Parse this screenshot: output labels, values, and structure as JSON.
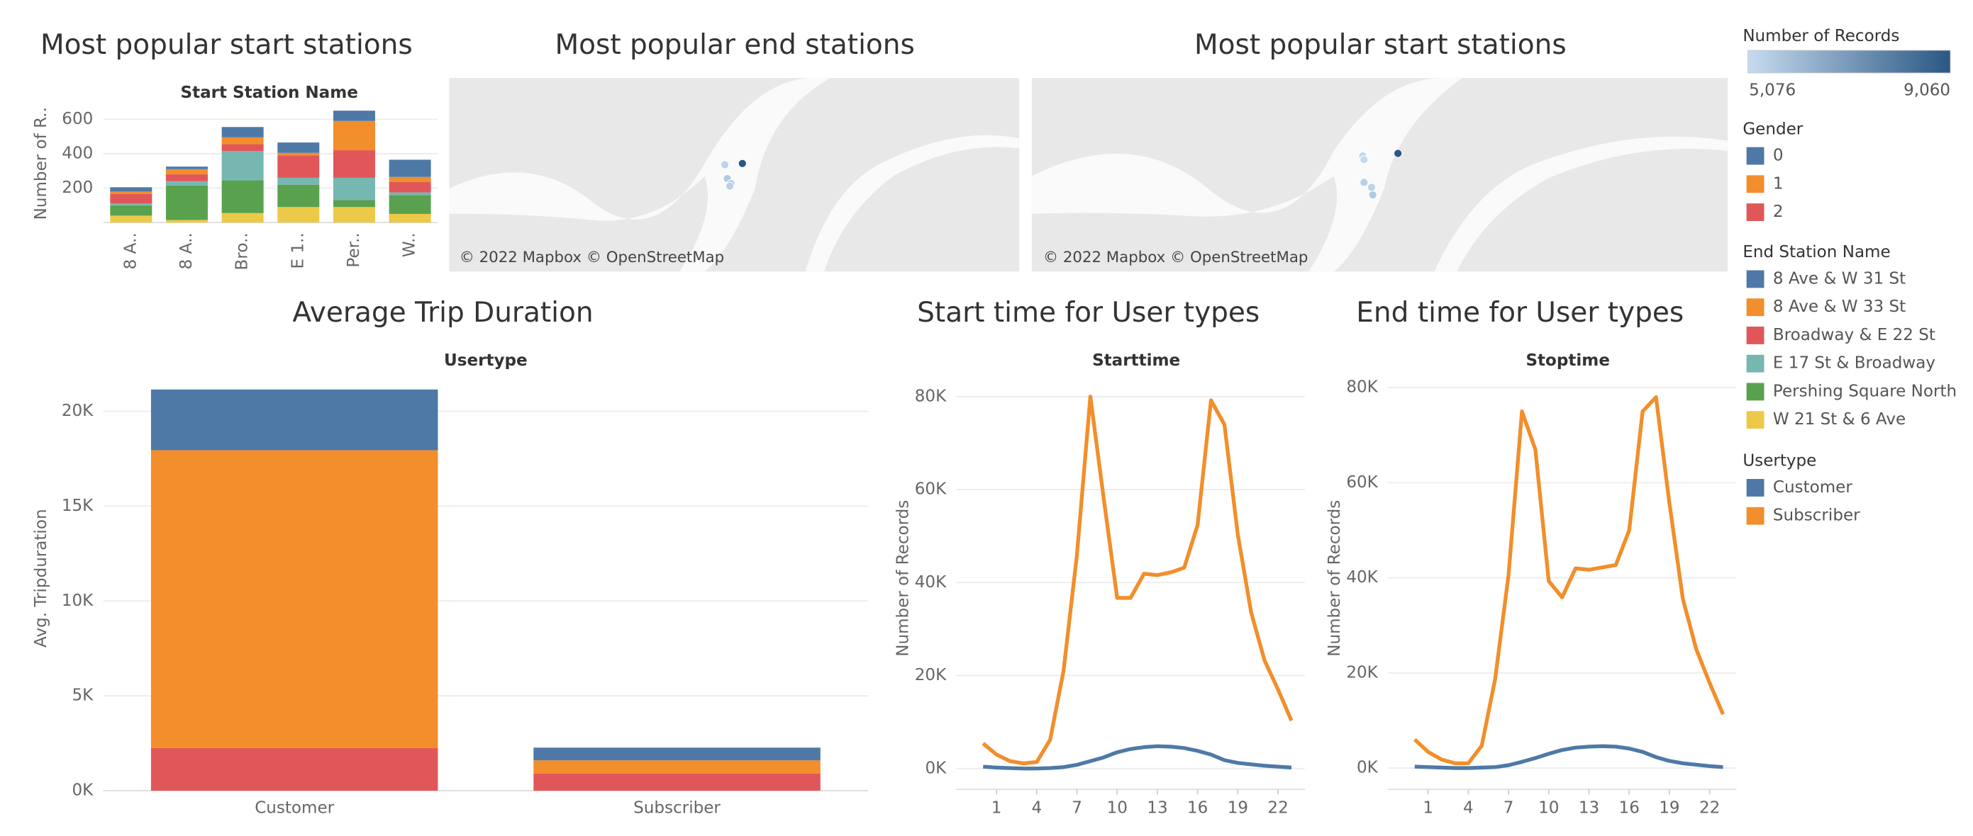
{
  "chart_data": [
    {
      "type": "bar",
      "title": "Most popular start stations",
      "subtitle": "Start Station Name",
      "y_label": "Number of R..",
      "legend_title": "End Station Name",
      "categories": [
        "8 A..",
        "8 A..",
        "Bro..",
        "E 1..",
        "Per..",
        "W.."
      ],
      "ylim": [
        0,
        650
      ],
      "yticks": [
        200,
        400,
        600
      ],
      "grid": true,
      "series": [
        {
          "name": "8 Ave & W 31 St",
          "color": "#4e79a7",
          "values": [
            25,
            15,
            60,
            60,
            60,
            100
          ]
        },
        {
          "name": "8 Ave & W 33 St",
          "color": "#f28e2b",
          "values": [
            15,
            30,
            40,
            15,
            170,
            30
          ]
        },
        {
          "name": "Broadway & E 22 St",
          "color": "#e15759",
          "values": [
            55,
            40,
            40,
            130,
            160,
            60
          ]
        },
        {
          "name": "E 17 St & Broadway",
          "color": "#76b7b2",
          "values": [
            10,
            25,
            170,
            40,
            130,
            15
          ]
        },
        {
          "name": "Pershing Square North",
          "color": "#59a14f",
          "values": [
            60,
            200,
            190,
            130,
            40,
            110
          ]
        },
        {
          "name": "W 21 St & 6 Ave",
          "color": "#edc948",
          "values": [
            40,
            15,
            55,
            90,
            90,
            50
          ]
        }
      ]
    },
    {
      "type": "bar",
      "title": "Average Trip Duration",
      "subtitle": "Usertype",
      "y_label": "Avg. Tripduration",
      "legend_title": "Gender",
      "categories": [
        "Customer",
        "Subscriber"
      ],
      "ylim": [
        0,
        22000
      ],
      "grid": true,
      "yticks": [
        {
          "value": 0,
          "label": "0K"
        },
        {
          "value": 5000,
          "label": "5K"
        },
        {
          "value": 10000,
          "label": "10K"
        },
        {
          "value": 15000,
          "label": "15K"
        },
        {
          "value": 20000,
          "label": "20K"
        }
      ],
      "series": [
        {
          "name": "0",
          "color": "#4e79a7",
          "values": [
            3200,
            670
          ]
        },
        {
          "name": "1",
          "color": "#f28e2b",
          "values": [
            15700,
            700
          ]
        },
        {
          "name": "2",
          "color": "#e15759",
          "values": [
            2250,
            900
          ]
        }
      ]
    },
    {
      "type": "line",
      "title": "Start time for User types",
      "subtitle": "Starttime",
      "y_label": "Number of Records",
      "legend_title": "Usertype",
      "x": [
        0,
        1,
        2,
        3,
        4,
        5,
        6,
        7,
        8,
        9,
        10,
        11,
        12,
        13,
        14,
        15,
        16,
        17,
        18,
        19,
        20,
        21,
        22,
        23
      ],
      "xlim": [
        -2,
        24
      ],
      "xticks": [
        1,
        4,
        7,
        10,
        13,
        16,
        19,
        22
      ],
      "ylim": [
        -4500,
        85000
      ],
      "grid": true,
      "yticks": [
        {
          "value": 0,
          "label": "0K"
        },
        {
          "value": 20000,
          "label": "20K"
        },
        {
          "value": 40000,
          "label": "40K"
        },
        {
          "value": 60000,
          "label": "60K"
        },
        {
          "value": 80000,
          "label": "80K"
        }
      ],
      "series": [
        {
          "name": "Customer",
          "color": "#4e79a7",
          "values": [
            400,
            200,
            100,
            0,
            0,
            100,
            300,
            800,
            1600,
            2400,
            3500,
            4200,
            4600,
            4800,
            4700,
            4400,
            3800,
            3000,
            1800,
            1200,
            900,
            600,
            400,
            200
          ]
        },
        {
          "name": "Subscriber",
          "color": "#f28e2b",
          "values": [
            5400,
            3000,
            1600,
            1100,
            1400,
            6200,
            21000,
            46000,
            80000,
            58000,
            36700,
            36700,
            41900,
            41600,
            42200,
            43200,
            52400,
            79200,
            74000,
            50300,
            33500,
            23200,
            17000,
            10300
          ]
        }
      ]
    },
    {
      "type": "line",
      "title": "End time for User types",
      "subtitle": "Stoptime",
      "y_label": "Number of Records",
      "x": [
        0,
        1,
        2,
        3,
        4,
        5,
        6,
        7,
        8,
        9,
        10,
        11,
        12,
        13,
        14,
        15,
        16,
        17,
        18,
        19,
        20,
        21,
        22,
        23
      ],
      "xlim": [
        -2,
        24
      ],
      "xticks": [
        1,
        4,
        7,
        10,
        13,
        16,
        19,
        22
      ],
      "ylim": [
        -4500,
        83000
      ],
      "grid": true,
      "yticks": [
        {
          "value": 0,
          "label": "0K"
        },
        {
          "value": 20000,
          "label": "20K"
        },
        {
          "value": 40000,
          "label": "40K"
        },
        {
          "value": 60000,
          "label": "60K"
        },
        {
          "value": 80000,
          "label": "80K"
        }
      ],
      "series": [
        {
          "name": "Customer",
          "color": "#4e79a7",
          "values": [
            300,
            200,
            100,
            0,
            0,
            100,
            200,
            600,
            1300,
            2100,
            3000,
            3800,
            4300,
            4500,
            4600,
            4500,
            4100,
            3400,
            2300,
            1500,
            1000,
            700,
            400,
            200
          ]
        },
        {
          "name": "Subscriber",
          "color": "#f28e2b",
          "values": [
            6000,
            3400,
            1800,
            1000,
            1000,
            4700,
            18700,
            40600,
            75000,
            67000,
            39300,
            35900,
            42000,
            41700,
            42200,
            42700,
            50000,
            75000,
            78000,
            55700,
            35600,
            25000,
            17900,
            11300
          ]
        }
      ]
    }
  ],
  "maps": [
    {
      "title": "Most popular end stations",
      "attribution": "© 2022 Mapbox © OpenStreetMap",
      "points": [
        {
          "records": 5300
        },
        {
          "records": 5600
        },
        {
          "records": 5500
        },
        {
          "records": 5400
        },
        {
          "records": 9060
        }
      ]
    },
    {
      "title": "Most popular start stations",
      "attribution": "© 2022 Mapbox © OpenStreetMap",
      "points": [
        {
          "records": 5200
        },
        {
          "records": 5100
        },
        {
          "records": 5400
        },
        {
          "records": 5600
        },
        {
          "records": 5300
        },
        {
          "records": 9060
        }
      ]
    }
  ],
  "color_scale": {
    "title": "Number of Records",
    "colors": [
      "#c6dbef",
      "#2a5783"
    ],
    "range": [
      {
        "value": 5076,
        "label": "5,076"
      },
      {
        "value": 9060,
        "label": "9,060"
      }
    ]
  }
}
